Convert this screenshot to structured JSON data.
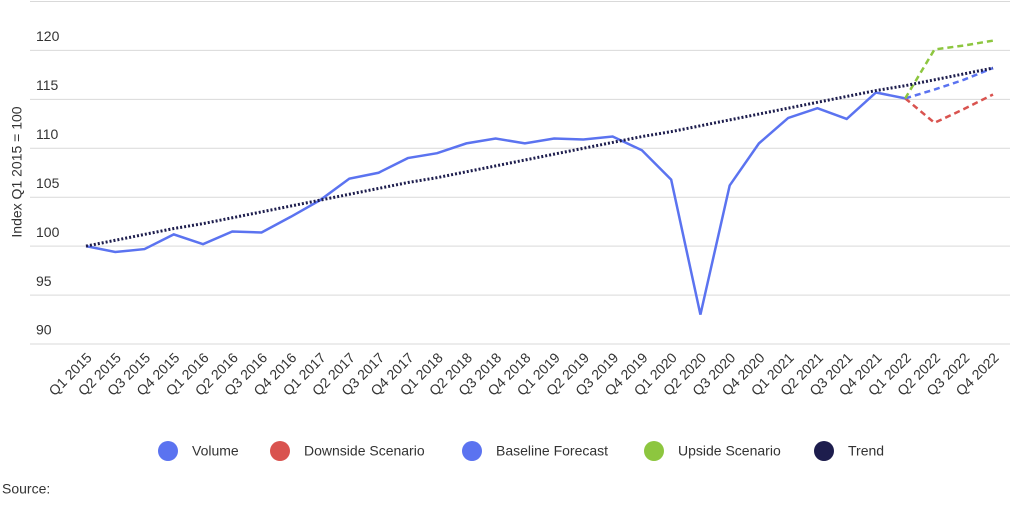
{
  "chart_data": {
    "type": "line",
    "y_label": "Index Q1 2015 = 100",
    "source": "Source:",
    "categories": [
      "Q1 2015",
      "Q2 2015",
      "Q3 2015",
      "Q4 2015",
      "Q1 2016",
      "Q2 2016",
      "Q3 2016",
      "Q4 2016",
      "Q1 2017",
      "Q2 2017",
      "Q3 2017",
      "Q4 2017",
      "Q1 2018",
      "Q2 2018",
      "Q3 2018",
      "Q4 2018",
      "Q1 2019",
      "Q2 2019",
      "Q3 2019",
      "Q4 2019",
      "Q1 2020",
      "Q2 2020",
      "Q3 2020",
      "Q4 2020",
      "Q1 2021",
      "Q2 2021",
      "Q3 2021",
      "Q4 2021",
      "Q1 2022",
      "Q2 2022",
      "Q3 2022",
      "Q4 2022"
    ],
    "series": [
      {
        "name": "Volume",
        "color": "#5b73f0",
        "dash": "solid",
        "values": [
          100,
          99.4,
          99.7,
          101.2,
          100.2,
          101.5,
          101.4,
          103.0,
          104.7,
          106.9,
          107.5,
          109.0,
          109.5,
          110.5,
          111.0,
          110.5,
          111.0,
          110.9,
          111.2,
          109.8,
          106.8,
          93.0,
          106.2,
          110.5,
          113.1,
          114.1,
          113.0,
          115.7,
          115.1,
          null,
          null,
          null
        ]
      },
      {
        "name": "Downside Scenario",
        "color": "#d9534f",
        "dash": "dashed",
        "values": [
          null,
          null,
          null,
          null,
          null,
          null,
          null,
          null,
          null,
          null,
          null,
          null,
          null,
          null,
          null,
          null,
          null,
          null,
          null,
          null,
          null,
          null,
          null,
          null,
          null,
          null,
          null,
          null,
          115.1,
          112.6,
          114.0,
          115.5
        ]
      },
      {
        "name": "Baseline Forecast",
        "color": "#5b73f0",
        "dash": "dashed",
        "values": [
          null,
          null,
          null,
          null,
          null,
          null,
          null,
          null,
          null,
          null,
          null,
          null,
          null,
          null,
          null,
          null,
          null,
          null,
          null,
          null,
          null,
          null,
          null,
          null,
          null,
          null,
          null,
          null,
          115.1,
          116.0,
          117.0,
          118.2
        ]
      },
      {
        "name": "Upside Scenario",
        "color": "#8dc63f",
        "dash": "dashed",
        "values": [
          null,
          null,
          null,
          null,
          null,
          null,
          null,
          null,
          null,
          null,
          null,
          null,
          null,
          null,
          null,
          null,
          null,
          null,
          null,
          null,
          null,
          null,
          null,
          null,
          null,
          null,
          null,
          null,
          115.1,
          120.1,
          120.5,
          121.0
        ]
      },
      {
        "name": "Trend",
        "color": "#1d1d4d",
        "dash": "dotted",
        "values": [
          100.0,
          100.6,
          101.2,
          101.8,
          102.3,
          102.9,
          103.5,
          104.1,
          104.7,
          105.3,
          105.9,
          106.5,
          107.0,
          107.6,
          108.2,
          108.8,
          109.4,
          110.0,
          110.6,
          111.2,
          111.7,
          112.3,
          112.9,
          113.5,
          114.1,
          114.7,
          115.3,
          115.9,
          116.4,
          117.0,
          117.6,
          118.2
        ]
      }
    ],
    "ylim": [
      90,
      125
    ],
    "yticks": [
      90,
      95,
      100,
      105,
      110,
      115,
      120
    ],
    "grid": true
  }
}
